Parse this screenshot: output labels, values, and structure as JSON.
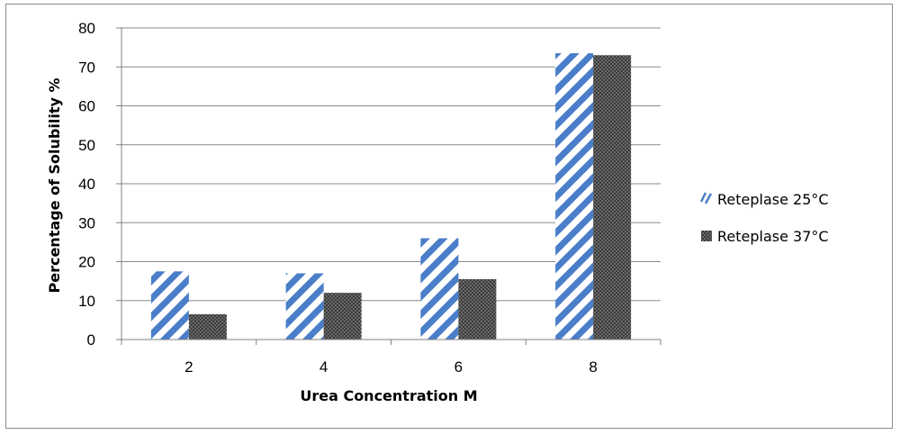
{
  "chart_data": {
    "type": "bar",
    "categories": [
      "2",
      "4",
      "6",
      "8"
    ],
    "series": [
      {
        "name": "Reteplase 25°C",
        "values": [
          17.5,
          17,
          26,
          73.5
        ],
        "pattern": "diagonal-stripes",
        "color": "#4a7ec9"
      },
      {
        "name": "Reteplase 37°C",
        "values": [
          6.5,
          12,
          15.5,
          73
        ],
        "pattern": "dark-checker",
        "color": "#555555"
      }
    ],
    "xlabel": "Urea Concentration  M",
    "ylabel": "Percentage of Solubility %",
    "ylim": [
      0,
      80
    ],
    "yticks": [
      0,
      10,
      20,
      30,
      40,
      50,
      60,
      70,
      80
    ],
    "grid": true,
    "legend_position": "right"
  }
}
